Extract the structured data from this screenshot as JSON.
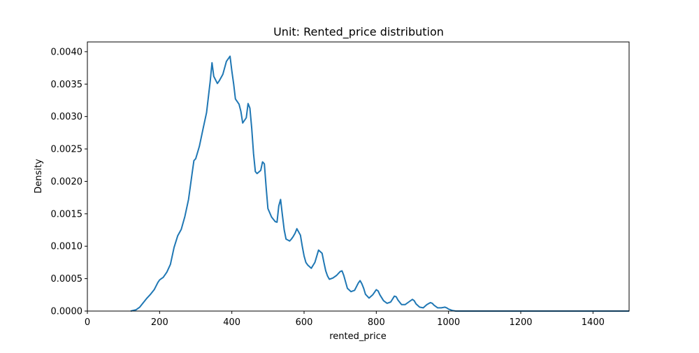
{
  "chart_data": {
    "type": "line",
    "title": "Unit: Rented_price distribution",
    "xlabel": "rented_price",
    "ylabel": "Density",
    "xlim": [
      0,
      1500
    ],
    "ylim": [
      0,
      0.00415
    ],
    "grid": false,
    "legend": "none",
    "x_ticks": [
      0,
      200,
      400,
      600,
      800,
      1000,
      1200,
      1400
    ],
    "x_tick_labels": [
      "0",
      "200",
      "400",
      "600",
      "800",
      "1000",
      "1200",
      "1400"
    ],
    "y_ticks": [
      0,
      0.0005,
      0.001,
      0.0015,
      0.002,
      0.0025,
      0.003,
      0.0035,
      0.004
    ],
    "y_tick_labels": [
      "0.0000",
      "0.0005",
      "0.0010",
      "0.0015",
      "0.0020",
      "0.0025",
      "0.0030",
      "0.0035",
      "0.0040"
    ],
    "series": [
      {
        "color": "#1f77b4",
        "x": [
          120,
          135,
          145,
          155,
          165,
          175,
          185,
          195,
          200,
          205,
          210,
          220,
          230,
          240,
          250,
          260,
          270,
          280,
          290,
          295,
          300,
          310,
          320,
          330,
          340,
          345,
          350,
          360,
          365,
          375,
          385,
          395,
          400,
          405,
          410,
          420,
          425,
          430,
          440,
          445,
          450,
          455,
          460,
          465,
          470,
          480,
          485,
          490,
          495,
          500,
          510,
          520,
          525,
          530,
          535,
          540,
          545,
          550,
          560,
          565,
          570,
          575,
          580,
          590,
          595,
          600,
          605,
          610,
          620,
          630,
          640,
          650,
          655,
          660,
          665,
          670,
          680,
          690,
          700,
          705,
          710,
          720,
          730,
          740,
          750,
          755,
          760,
          765,
          770,
          780,
          790,
          795,
          800,
          805,
          810,
          820,
          830,
          840,
          850,
          855,
          860,
          870,
          880,
          890,
          900,
          905,
          910,
          920,
          930,
          940,
          950,
          955,
          960,
          970,
          980,
          990,
          995,
          1000,
          1010,
          1020,
          1050,
          1100,
          1200,
          1300,
          1400,
          1500
        ],
        "y": [
          0,
          2e-05,
          6e-05,
          0.00013,
          0.0002,
          0.00026,
          0.00033,
          0.00044,
          0.00048,
          0.0005,
          0.00052,
          0.0006,
          0.00072,
          0.00098,
          0.00116,
          0.00126,
          0.00146,
          0.00172,
          0.00212,
          0.00232,
          0.00235,
          0.00254,
          0.0028,
          0.00306,
          0.00354,
          0.00383,
          0.00362,
          0.00351,
          0.00355,
          0.00365,
          0.00385,
          0.00393,
          0.0037,
          0.0035,
          0.00327,
          0.00319,
          0.00308,
          0.0029,
          0.00298,
          0.0032,
          0.00313,
          0.00282,
          0.00243,
          0.00215,
          0.00212,
          0.00217,
          0.0023,
          0.00227,
          0.0019,
          0.00158,
          0.00145,
          0.00138,
          0.00137,
          0.00162,
          0.00172,
          0.00148,
          0.00125,
          0.00111,
          0.00108,
          0.00111,
          0.00115,
          0.0012,
          0.00127,
          0.00117,
          0.001,
          0.00085,
          0.00075,
          0.00071,
          0.00066,
          0.00075,
          0.00094,
          0.00089,
          0.00075,
          0.00062,
          0.00054,
          0.00049,
          0.00051,
          0.00055,
          0.00061,
          0.00062,
          0.00055,
          0.00035,
          0.0003,
          0.00032,
          0.00043,
          0.00047,
          0.00042,
          0.00035,
          0.00026,
          0.0002,
          0.00025,
          0.00029,
          0.00033,
          0.00031,
          0.00025,
          0.00016,
          0.00012,
          0.00014,
          0.00023,
          0.00022,
          0.00017,
          0.0001,
          0.0001,
          0.00014,
          0.00018,
          0.00016,
          0.00011,
          6e-05,
          5e-05,
          0.0001,
          0.00013,
          0.00012,
          9e-05,
          5e-05,
          5e-05,
          6e-05,
          5e-05,
          3e-05,
          1e-05,
          0,
          0,
          0,
          0,
          0,
          0,
          0
        ]
      }
    ]
  }
}
